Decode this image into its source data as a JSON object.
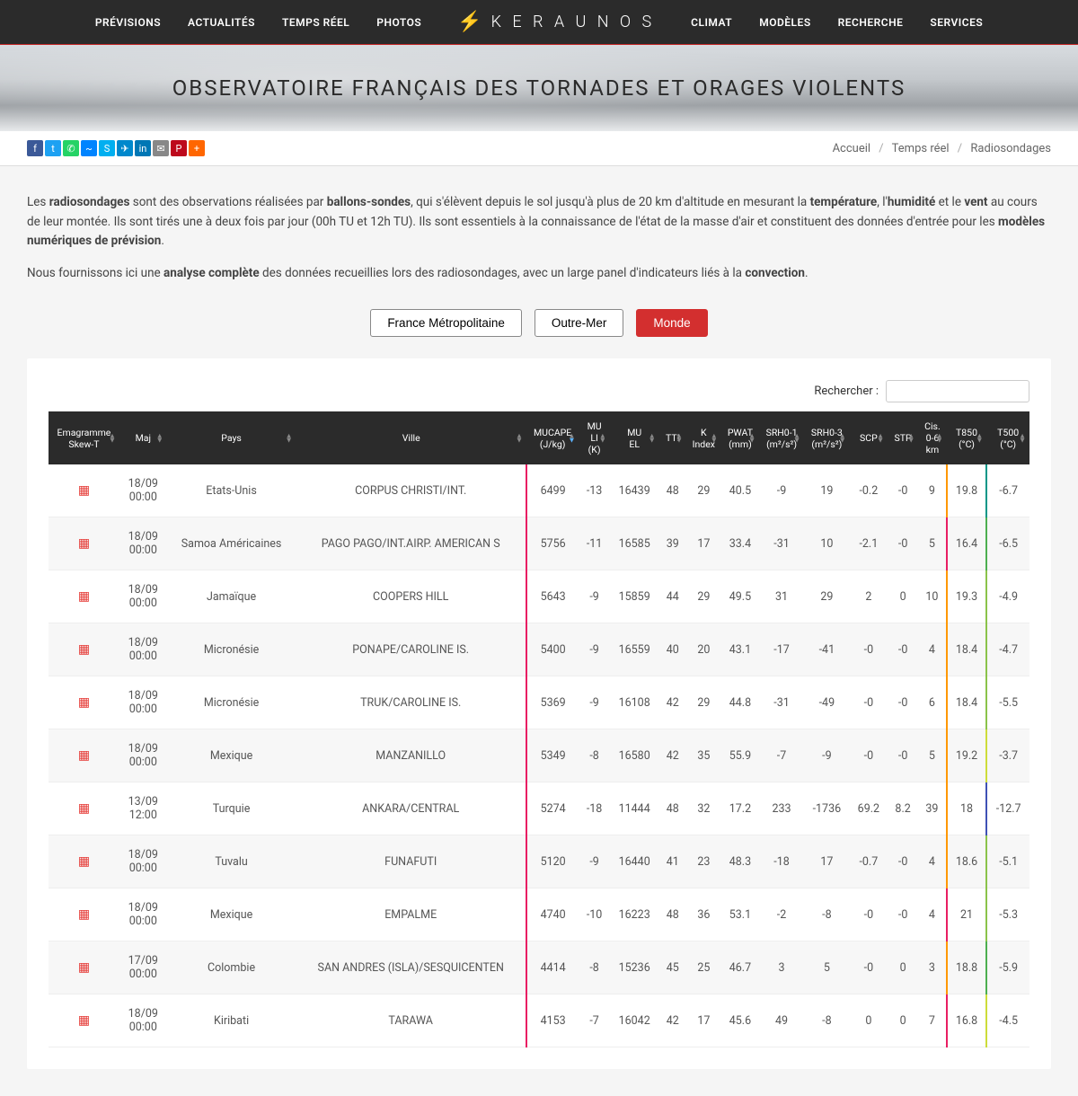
{
  "nav": {
    "left": [
      "PRÉVISIONS",
      "ACTUALITÉS",
      "TEMPS RÉEL",
      "PHOTOS"
    ],
    "right": [
      "CLIMAT",
      "MODÈLES",
      "RECHERCHE",
      "SERVICES"
    ],
    "logo": "K E R A U N O S"
  },
  "hero_title": "OBSERVATOIRE FRANÇAIS DES TORNADES ET ORAGES VIOLENTS",
  "social_colors": [
    "#3b5998",
    "#1da1f2",
    "#25d366",
    "#0084ff",
    "#00aff0",
    "#0088cc",
    "#0077b5",
    "#888888",
    "#bd081c",
    "#ff6600"
  ],
  "breadcrumb": {
    "home": "Accueil",
    "mid": "Temps réel",
    "current": "Radiosondages"
  },
  "intro": {
    "p1_a": "Les ",
    "p1_b1": "radiosondages",
    "p1_c": " sont des observations réalisées par ",
    "p1_b2": "ballons-sondes",
    "p1_d": ", qui s'élèvent depuis le sol jusqu'à plus de 20 km d'altitude en mesurant la ",
    "p1_b3": "température",
    "p1_e": ", l'",
    "p1_b4": "humidité",
    "p1_f": " et le ",
    "p1_b5": "vent",
    "p1_g": " au cours de leur montée. Ils sont tirés une à deux fois par jour (00h TU et 12h TU). Ils sont essentiels à la connaissance de l'état de la masse d'air et constituent des données d'entrée pour les ",
    "p1_b6": "modèles numériques de prévision",
    "p1_h": ".",
    "p2_a": "Nous fournissons ici une ",
    "p2_b1": "analyse complète",
    "p2_b": " des données recueillies lors des radiosondages, avec un large panel d'indicateurs liés à la ",
    "p2_b2": "convection",
    "p2_c": "."
  },
  "region_buttons": [
    "France Métropolitaine",
    "Outre-Mer",
    "Monde"
  ],
  "region_active_index": 2,
  "search_label": "Rechercher :",
  "search_value": "",
  "columns": [
    {
      "label": "Emagramme Skew-T"
    },
    {
      "label": "Maj"
    },
    {
      "label": "Pays"
    },
    {
      "label": "Ville"
    },
    {
      "label": "MUCAPE (J/kg)",
      "sorted": true
    },
    {
      "label": "MU LI (K)"
    },
    {
      "label": "MU EL"
    },
    {
      "label": "TTI"
    },
    {
      "label": "K Index"
    },
    {
      "label": "PWAT (mm)"
    },
    {
      "label": "SRH0-1 (m²/s²)"
    },
    {
      "label": "SRH0-3 (m²/s²)"
    },
    {
      "label": "SCP"
    },
    {
      "label": "STP"
    },
    {
      "label": "Cis. 0-6 km"
    },
    {
      "label": "T850 (°C)"
    },
    {
      "label": "T500 (°C)"
    }
  ],
  "rows": [
    {
      "maj": "18/09 00:00",
      "pays": "Etats-Unis",
      "ville": "CORPUS CHRISTI/INT.",
      "mucape": "6499",
      "muli": "-13",
      "muel": "16439",
      "tti": "48",
      "k": "29",
      "pwat": "40.5",
      "srh01": "-9",
      "srh03": "19",
      "scp": "-0.2",
      "stp": "-0",
      "cis": "9",
      "t850": "19.8",
      "t500": "-6.7",
      "c1": "#e91e63",
      "c2": "#ff9800",
      "c3": "#009688"
    },
    {
      "maj": "18/09 00:00",
      "pays": "Samoa Américaines",
      "ville": "PAGO PAGO/INT.AIRP. AMERICAN S",
      "mucape": "5756",
      "muli": "-11",
      "muel": "16585",
      "tti": "39",
      "k": "17",
      "pwat": "33.4",
      "srh01": "-31",
      "srh03": "10",
      "scp": "-2.1",
      "stp": "-0",
      "cis": "5",
      "t850": "16.4",
      "t500": "-6.5",
      "c1": "#e91e63",
      "c2": "#e91e63",
      "c3": "#4caf50"
    },
    {
      "maj": "18/09 00:00",
      "pays": "Jamaïque",
      "ville": "COOPERS HILL",
      "mucape": "5643",
      "muli": "-9",
      "muel": "15859",
      "tti": "44",
      "k": "29",
      "pwat": "49.5",
      "srh01": "31",
      "srh03": "29",
      "scp": "2",
      "stp": "0",
      "cis": "10",
      "t850": "19.3",
      "t500": "-4.9",
      "c1": "#e91e63",
      "c2": "#ff9800",
      "c3": "#8bc34a"
    },
    {
      "maj": "18/09 00:00",
      "pays": "Micronésie",
      "ville": "PONAPE/CAROLINE IS.",
      "mucape": "5400",
      "muli": "-9",
      "muel": "16559",
      "tti": "40",
      "k": "20",
      "pwat": "43.1",
      "srh01": "-17",
      "srh03": "-41",
      "scp": "-0",
      "stp": "-0",
      "cis": "4",
      "t850": "18.4",
      "t500": "-4.7",
      "c1": "#e91e63",
      "c2": "#ff9800",
      "c3": "#8bc34a"
    },
    {
      "maj": "18/09 00:00",
      "pays": "Micronésie",
      "ville": "TRUK/CAROLINE IS.",
      "mucape": "5369",
      "muli": "-9",
      "muel": "16108",
      "tti": "42",
      "k": "29",
      "pwat": "44.8",
      "srh01": "-31",
      "srh03": "-49",
      "scp": "-0",
      "stp": "-0",
      "cis": "6",
      "t850": "18.4",
      "t500": "-5.5",
      "c1": "#e91e63",
      "c2": "#ff9800",
      "c3": "#8bc34a"
    },
    {
      "maj": "18/09 00:00",
      "pays": "Mexique",
      "ville": "MANZANILLO",
      "mucape": "5349",
      "muli": "-8",
      "muel": "16580",
      "tti": "42",
      "k": "35",
      "pwat": "55.9",
      "srh01": "-7",
      "srh03": "-9",
      "scp": "-0",
      "stp": "-0",
      "cis": "5",
      "t850": "19.2",
      "t500": "-3.7",
      "c1": "#e91e63",
      "c2": "#ff9800",
      "c3": "#cddc39"
    },
    {
      "maj": "13/09 12:00",
      "pays": "Turquie",
      "ville": "ANKARA/CENTRAL",
      "mucape": "5274",
      "muli": "-18",
      "muel": "11444",
      "tti": "48",
      "k": "32",
      "pwat": "17.2",
      "srh01": "233",
      "srh03": "-1736",
      "scp": "69.2",
      "stp": "8.2",
      "cis": "39",
      "t850": "18",
      "t500": "-12.7",
      "c1": "#e91e63",
      "c2": "#ff9800",
      "c3": "#3f51b5"
    },
    {
      "maj": "18/09 00:00",
      "pays": "Tuvalu",
      "ville": "FUNAFUTI",
      "mucape": "5120",
      "muli": "-9",
      "muel": "16440",
      "tti": "41",
      "k": "23",
      "pwat": "48.3",
      "srh01": "-18",
      "srh03": "17",
      "scp": "-0.7",
      "stp": "-0",
      "cis": "4",
      "t850": "18.6",
      "t500": "-5.1",
      "c1": "#e91e63",
      "c2": "#ff9800",
      "c3": "#8bc34a"
    },
    {
      "maj": "18/09 00:00",
      "pays": "Mexique",
      "ville": "EMPALME",
      "mucape": "4740",
      "muli": "-10",
      "muel": "16223",
      "tti": "48",
      "k": "36",
      "pwat": "53.1",
      "srh01": "-2",
      "srh03": "-8",
      "scp": "-0",
      "stp": "-0",
      "cis": "4",
      "t850": "21",
      "t500": "-5.3",
      "c1": "#e91e63",
      "c2": "#e91e63",
      "c3": "#8bc34a"
    },
    {
      "maj": "17/09 00:00",
      "pays": "Colombie",
      "ville": "SAN ANDRES (ISLA)/SESQUICENTEN",
      "mucape": "4414",
      "muli": "-8",
      "muel": "15236",
      "tti": "45",
      "k": "25",
      "pwat": "46.7",
      "srh01": "3",
      "srh03": "5",
      "scp": "-0",
      "stp": "0",
      "cis": "3",
      "t850": "18.8",
      "t500": "-5.9",
      "c1": "#e91e63",
      "c2": "#ff9800",
      "c3": "#4caf50"
    },
    {
      "maj": "18/09 00:00",
      "pays": "Kiribati",
      "ville": "TARAWA",
      "mucape": "4153",
      "muli": "-7",
      "muel": "16042",
      "tti": "42",
      "k": "17",
      "pwat": "45.6",
      "srh01": "49",
      "srh03": "-8",
      "scp": "0",
      "stp": "0",
      "cis": "7",
      "t850": "16.8",
      "t500": "-4.5",
      "c1": "#e91e63",
      "c2": "#e91e63",
      "c3": "#cddc39"
    }
  ]
}
